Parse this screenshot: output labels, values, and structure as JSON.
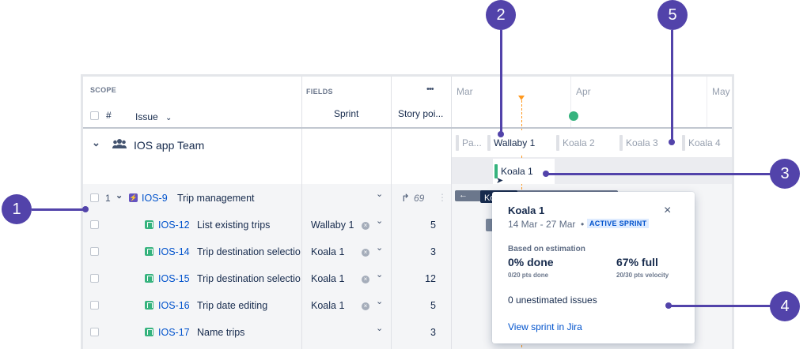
{
  "header": {
    "scope": "SCOPE",
    "fields": "FIELDS",
    "more": "•••",
    "hash": "#",
    "issue": "Issue",
    "sprint": "Sprint",
    "story_points": "Story poi...",
    "months": [
      "Mar",
      "Apr",
      "May"
    ]
  },
  "team": {
    "name": "IOS app Team"
  },
  "sprints": [
    "Pa...",
    "Wallaby 1",
    "Koala 2",
    "Koala 3",
    "Koala 4"
  ],
  "sprint_lane_label": "Koala 1",
  "tooltip_label": "Koala 1",
  "epic": {
    "number": "1",
    "key": "IOS-9",
    "title": "Trip management",
    "points": "69"
  },
  "rows": [
    {
      "key": "IOS-12",
      "title": "List existing trips",
      "sprint": "Wallaby 1",
      "points": "5"
    },
    {
      "key": "IOS-14",
      "title": "Trip destination selection",
      "sprint": "Koala 1",
      "points": "3"
    },
    {
      "key": "IOS-15",
      "title": "Trip destination selection",
      "sprint": "Koala 1",
      "points": "12"
    },
    {
      "key": "IOS-16",
      "title": "Trip date editing",
      "sprint": "Koala 1",
      "points": "5"
    },
    {
      "key": "IOS-17",
      "title": "Name trips",
      "sprint": "",
      "points": "3"
    }
  ],
  "popover": {
    "title": "Koala 1",
    "dates": "14 Mar - 27 Mar",
    "badge": "ACTIVE SPRINT",
    "basis": "Based on estimation",
    "done": "0% done",
    "done_sub": "0/20 pts done",
    "full": "67% full",
    "full_sub": "20/30 pts velocity",
    "unestimated": "0 unestimated issues",
    "link": "View sprint in Jira"
  },
  "callouts": [
    "1",
    "2",
    "3",
    "4",
    "5"
  ],
  "colors": {
    "accent": "#5243aa",
    "link": "#0052cc",
    "story": "#36b37e",
    "epic": "#6554c0"
  }
}
